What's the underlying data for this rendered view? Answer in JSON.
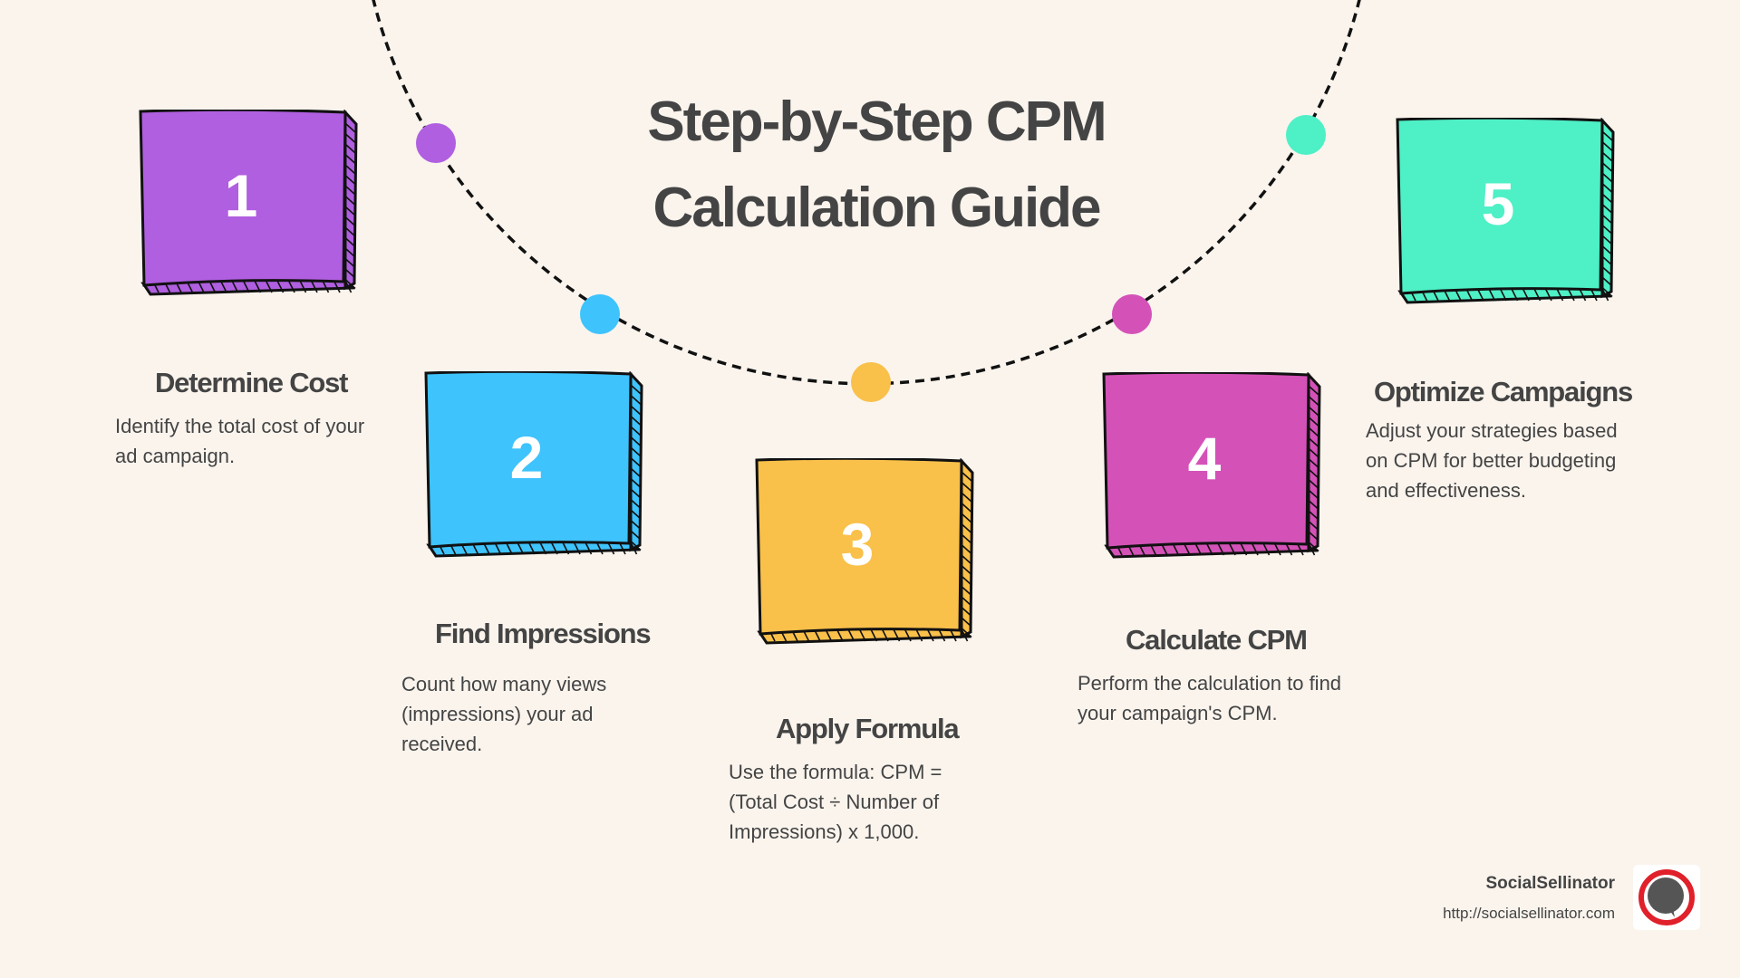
{
  "title": {
    "line1": "Step-by-Step CPM",
    "line2": "Calculation Guide"
  },
  "steps": [
    {
      "number": "1",
      "heading": "Determine Cost",
      "body": "Identify the total cost of your ad campaign.",
      "color": "#b05fe0"
    },
    {
      "number": "2",
      "heading": "Find Impressions",
      "body": "Count how many views (impressions) your ad received.",
      "color": "#3ec3fc"
    },
    {
      "number": "3",
      "heading": "Apply Formula",
      "body": "Use the formula: CPM = (Total Cost ÷ Number of Impressions) x 1,000.",
      "color": "#f9c04a"
    },
    {
      "number": "4",
      "heading": "Calculate CPM",
      "body": "Perform the calculation to find your campaign's CPM.",
      "color": "#d452b8"
    },
    {
      "number": "5",
      "heading": "Optimize Campaigns",
      "body": "Adjust your strategies based on CPM for better budgeting and effectiveness.",
      "color": "#4ef0c6"
    }
  ],
  "brand": {
    "name": "SocialSellinator",
    "url": "http://socialsellinator.com",
    "logo_icon": "speech-bubble-ring-icon",
    "logo_color": "#e0202a"
  }
}
